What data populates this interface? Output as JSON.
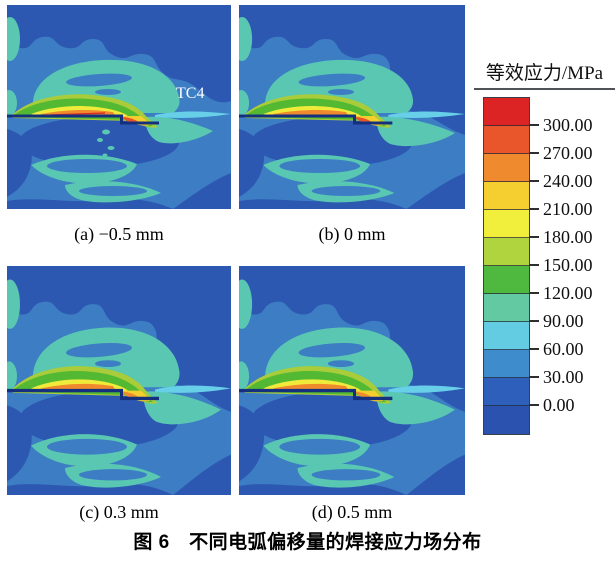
{
  "figure": {
    "panels": [
      {
        "id": "a",
        "label": "(a) −0.5 mm",
        "annotation": "TC4"
      },
      {
        "id": "b",
        "label": "(b) 0 mm",
        "annotation": ""
      },
      {
        "id": "c",
        "label": "(c) 0.3 mm",
        "annotation": ""
      },
      {
        "id": "d",
        "label": "(d) 0.5 mm",
        "annotation": ""
      }
    ],
    "caption": "图 6　不同电弧偏移量的焊接应力场分布"
  },
  "legend": {
    "title": "等效应力/MPa",
    "values": [
      "300.00",
      "270.00",
      "240.00",
      "210.00",
      "180.00",
      "150.00",
      "120.00",
      "90.00",
      "60.00",
      "30.00",
      "0.00"
    ],
    "colors": [
      "#dc2424",
      "#e9562b",
      "#f08a2e",
      "#f5cf30",
      "#f2ee3c",
      "#afd43e",
      "#4eb93e",
      "#62c9a2",
      "#63cbe2",
      "#3f8ccc",
      "#2e60bb",
      "#2b52ae"
    ]
  },
  "chart_data": {
    "type": "heatmap",
    "title": "图 6　不同电弧偏移量的焊接应力场分布",
    "colorbar_label": "等效应力/MPa",
    "colorbar_ticks_mpa": [
      300,
      270,
      240,
      210,
      180,
      150,
      120,
      90,
      60,
      30,
      0
    ],
    "colorbar_step_mpa": 30,
    "panels": [
      {
        "label": "(a) −0.5 mm",
        "arc_offset_mm": -0.5
      },
      {
        "label": "(b) 0 mm",
        "arc_offset_mm": 0
      },
      {
        "label": "(c) 0.3 mm",
        "arc_offset_mm": 0.3
      },
      {
        "label": "(d) 0.5 mm",
        "arc_offset_mm": 0.5
      }
    ],
    "material_annotation": "TC4",
    "legend_position": "right"
  }
}
